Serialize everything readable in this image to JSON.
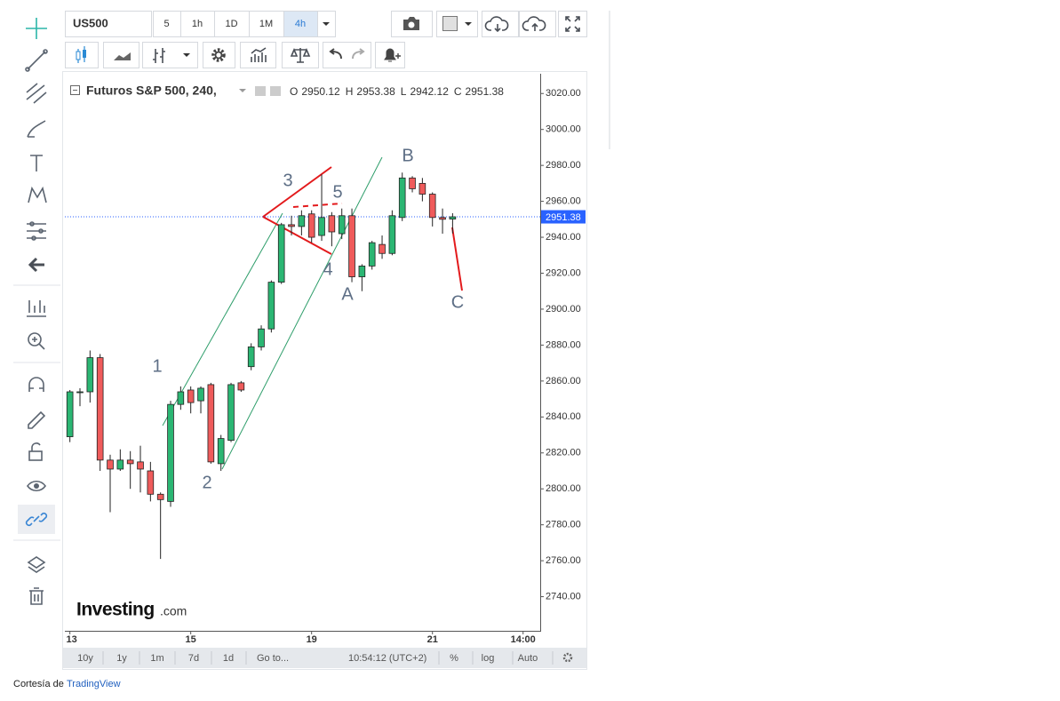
{
  "toolbar": {
    "symbol": "US500",
    "intervals": [
      "5",
      "1h",
      "1D",
      "1M",
      "4h"
    ],
    "active_interval_index": 4
  },
  "chart_data": {
    "type": "candlestick",
    "title": "Futuros S&P 500, 240,",
    "ohlc_legend": [
      {
        "label": "O",
        "value": 2950.12
      },
      {
        "label": "H",
        "value": 2953.38
      },
      {
        "label": "L",
        "value": 2942.12
      },
      {
        "label": "C",
        "value": 2951.38
      }
    ],
    "x": [
      0,
      1,
      2,
      3,
      4,
      5,
      6,
      7,
      8,
      9,
      10,
      11,
      12,
      13,
      14,
      15,
      16,
      17,
      18,
      19,
      20,
      21,
      22,
      23,
      24,
      25,
      26,
      27,
      28,
      29,
      30,
      31,
      32,
      33,
      34,
      35,
      36,
      37,
      38
    ],
    "open": [
      2829,
      2854,
      2854,
      2873,
      2816,
      2811,
      2816,
      2815,
      2810,
      2797,
      2793,
      2847,
      2855,
      2849,
      2858,
      2814,
      2827,
      2859,
      2868,
      2879,
      2889,
      2915,
      2947,
      2946,
      2953,
      2941,
      2952,
      2942,
      2952,
      2918,
      2924,
      2936,
      2931,
      2951,
      2973,
      2970,
      2964,
      2951,
      2950.12
    ],
    "high": [
      2855,
      2856,
      2877,
      2875,
      2819,
      2822,
      2821,
      2824,
      2815,
      2798,
      2849,
      2857,
      2857,
      2857,
      2859,
      2830,
      2859,
      2860,
      2881,
      2891,
      2916,
      2948,
      2952,
      2955,
      2955,
      2975,
      2954,
      2956,
      2956,
      2925,
      2938,
      2941,
      2955,
      2976,
      2974,
      2973,
      2965,
      2956,
      2953.38
    ],
    "low": [
      2826,
      2846,
      2848,
      2810,
      2787,
      2810,
      2800,
      2798,
      2793,
      2761,
      2790,
      2844,
      2842,
      2842,
      2814,
      2810,
      2826,
      2854,
      2866,
      2877,
      2887,
      2914,
      2941,
      2941,
      2937,
      2938,
      2935,
      2939,
      2915,
      2910,
      2922,
      2928,
      2930,
      2949,
      2965,
      2960,
      2946,
      2942,
      2942.12
    ],
    "close": [
      2854,
      2854,
      2873,
      2816,
      2811,
      2816,
      2814,
      2811,
      2797,
      2794,
      2847,
      2854,
      2848,
      2856,
      2815,
      2828,
      2858,
      2855,
      2879,
      2889,
      2915,
      2947,
      2946,
      2952,
      2940,
      2951,
      2943,
      2952,
      2918,
      2924,
      2937,
      2931,
      2952,
      2973,
      2967,
      2964,
      2951,
      2950,
      2951.38
    ],
    "up_color": "#2bb673",
    "down_color": "#ef5b5b",
    "xlim": [
      -0.5,
      46.7
    ],
    "xticks": [
      {
        "value": 0,
        "label": "13"
      },
      {
        "value": 12,
        "label": "15"
      },
      {
        "value": 24,
        "label": "19"
      },
      {
        "value": 36,
        "label": "21"
      },
      {
        "value": 45,
        "label": "14:00"
      }
    ],
    "ylim": [
      2721,
      3031
    ],
    "yticks": [
      {
        "value": 2740,
        "label": "2740.00"
      },
      {
        "value": 2760,
        "label": "2760.00"
      },
      {
        "value": 2780,
        "label": "2780.00"
      },
      {
        "value": 2800,
        "label": "2800.00"
      },
      {
        "value": 2820,
        "label": "2820.00"
      },
      {
        "value": 2840,
        "label": "2840.00"
      },
      {
        "value": 2860,
        "label": "2860.00"
      },
      {
        "value": 2880,
        "label": "2880.00"
      },
      {
        "value": 2900,
        "label": "2900.00"
      },
      {
        "value": 2920,
        "label": "2920.00"
      },
      {
        "value": 2940,
        "label": "2940.00"
      },
      {
        "value": 2960,
        "label": "2960.00"
      },
      {
        "value": 2980,
        "label": "2980.00"
      },
      {
        "value": 3000,
        "label": "3000.00"
      },
      {
        "value": 3020,
        "label": "3020.00"
      }
    ],
    "last_price": {
      "value": 2951.38,
      "label": "2951.38",
      "color": "#2962ff"
    },
    "annotations": [
      "1",
      "2",
      "3",
      "4",
      "5",
      "A",
      "B",
      "C"
    ],
    "watermark": [
      "Investing",
      ".com"
    ]
  },
  "bottom_bar": {
    "ranges": [
      "10y",
      "1y",
      "1m",
      "7d",
      "1d"
    ],
    "goto": "Go to...",
    "clock": "10:54:12 (UTC+2)",
    "scale_options": [
      "%",
      "log",
      "Auto"
    ]
  },
  "footer": {
    "prefix": "Cortesía de",
    "link": "TradingView"
  }
}
